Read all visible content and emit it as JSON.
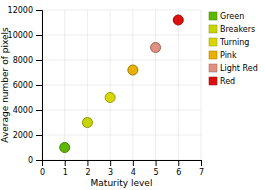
{
  "chart_data": {
    "type": "scatter",
    "xlabel": "Maturity level",
    "ylabel": "Average number of pixels",
    "series": [
      {
        "name": "Green",
        "color": "#5cb800",
        "x": [
          1
        ],
        "values": [
          1000
        ]
      },
      {
        "name": "Breakers",
        "color": "#c8d400",
        "x": [
          2
        ],
        "values": [
          3000
        ]
      },
      {
        "name": "Turning",
        "color": "#d8d800",
        "x": [
          3
        ],
        "values": [
          5000
        ]
      },
      {
        "name": "Pink",
        "color": "#e8b000",
        "x": [
          4
        ],
        "values": [
          7200
        ]
      },
      {
        "name": "Light Red",
        "color": "#e09080",
        "x": [
          5
        ],
        "values": [
          9000
        ]
      },
      {
        "name": "Red",
        "color": "#dd1010",
        "x": [
          6
        ],
        "values": [
          11200
        ]
      }
    ],
    "xlim": [
      0,
      7
    ],
    "ylim": [
      0,
      12000
    ],
    "xticks": [
      0,
      1,
      2,
      3,
      4,
      5,
      6,
      7
    ],
    "yticks": [
      0,
      2000,
      4000,
      6000,
      8000,
      10000,
      12000
    ],
    "grid": true,
    "legend": "right"
  }
}
